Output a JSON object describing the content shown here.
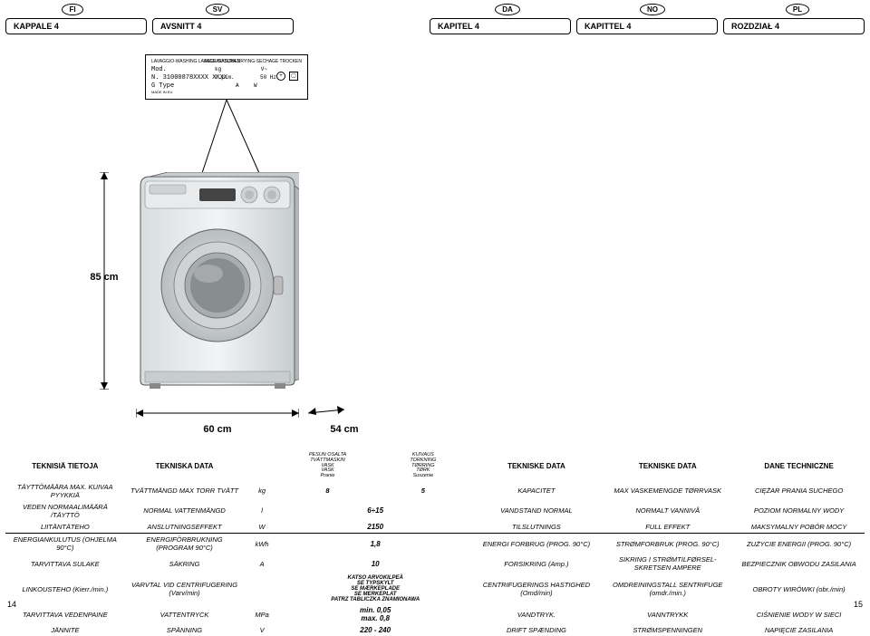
{
  "langs": [
    "FI",
    "SV",
    "",
    "DA",
    "NO",
    "PL"
  ],
  "chapters": [
    "KAPPALE 4",
    "AVSNITT 4",
    "",
    "KAPITEL 4",
    "KAPITTEL 4",
    "ROZDZIAŁ 4"
  ],
  "plate": {
    "topleft": "LAVAGGIO-WASHING\nLAVAGE-WASCHEN",
    "topright": "ASCIUGATURA\nDRYING-SECHAGE\nTROCKEN",
    "mod": "Mod.",
    "n": "N. 31000878XXXX XXXX",
    "g": "G       Type",
    "kg": "kg",
    "fs": "r.p.m.",
    "v": "V~",
    "hz": "50 Hz",
    "a": "A",
    "w": "W",
    "bot": "MADE IN EU"
  },
  "dims": {
    "h": "85 cm",
    "w": "60 cm",
    "d": "54 cm"
  },
  "header": {
    "c1": "TEKNISIÄ TIETOJA",
    "c2": "TEKNISKA DATA",
    "cu": "",
    "cv1_lines": [
      "PESUN OSALTA",
      "TVÄTTMASKIN",
      "VASK",
      "VASK",
      "Pranie"
    ],
    "cv2_lines": [
      "KUIVAUS",
      "TORKNING",
      "TØRRING",
      "TØRK",
      "Suszenie"
    ],
    "c3": "TEKNISKE DATA",
    "c4": "TEKNISKE DATA",
    "c5": "DANE TECHNICZNE"
  },
  "rows": [
    {
      "c1": "TÄYTTÖMÄÄRA MAX. KUIVAA PYYKKIÄ",
      "c2": "TVÄTTMÄNGD MAX TORR TVÄTT",
      "u": "kg",
      "v": "8            5",
      "c3": "KAPACITET",
      "c4": "MAX VASKEMENGDE TØRRVASK",
      "c5": "CIĘŻAR PRANIA SUCHEGO"
    },
    {
      "c1": "VEDEN NORMAALIMÄÄRÄ /TÄYTTÖ",
      "c2": "NORMAL VATTENMÄNGD",
      "u": "l",
      "v": "6÷15",
      "c3": "VANDSTAND NORMAL",
      "c4": "NORMALT VANNIVÅ",
      "c5": "POZIOM NORMALNY WODY"
    },
    {
      "c1": "LIITÄNTÄTEHO",
      "c2": "ANSLUTNINGSEFFEKT",
      "u": "W",
      "v": "2150",
      "c3": "TILSLUTNINGS",
      "c4": "FULL EFFEKT",
      "c5": "MAKSYMALNY POBÓR MOCY"
    }
  ],
  "rows2": [
    {
      "c1": "ENERGIANKULUTUS (OHJELMA 90°C)",
      "c2": "ENERGIFÖRBRUKNING (PROGRAM 90°C)",
      "u": "kWh",
      "v": "1,8",
      "c3": "ENERGI FORBRUG (PROG. 90°C)",
      "c4": "STRØMFORBRUK (PROG. 90°C)",
      "c5": "ZUŻYCIE ENERGII (PROG. 90°C)"
    },
    {
      "c1": "TARVITTAVA SULAKE",
      "c2": "SÄKRING",
      "u": "A",
      "v": "10",
      "c3": "FORSIKRING (Amp.)",
      "c4": "SIKRING I STRØMTILFØRSEL-SKRETSEN AMPERE",
      "c5": "BEZPIECZNIK OBWODU ZASILANIA"
    },
    {
      "c1": "LINKOUSTEHO (Kierr./min.)",
      "c2": "VARVTAL VID CENTRIFUGERING (Varv/min)",
      "u": "",
      "v": "KATSO ARVOKILPEÄ\nSE TYPSKYLT\nSE MÆRKEPLADE\nSE MERKEPLAT\nPATRZ TABLICZKA ZNAMIONAWA",
      "c3": "CENTRIFUGERINGS HASTIGHED (Omd/min)",
      "c4": "OMDREININGSTALL SENTRIFUGE (omdr./min.)",
      "c5": "OBROTY WIRÓWKI (obr./min)"
    },
    {
      "c1": "TARVITTAVA VEDENPAINE",
      "c2": "VATTENTRYCK",
      "u": "MPa",
      "v": "min. 0,05\nmax. 0,8",
      "c3": "VANDTRYK.",
      "c4": "VANNTRYKK",
      "c5": "CIŚNIENIE WODY W SIECI"
    },
    {
      "c1": "JÄNNITE",
      "c2": "SPÄNNING",
      "u": "V",
      "v": "220 - 240",
      "c3": "DRIFT SPÆNDING",
      "c4": "STRØMSPENNINGEN",
      "c5": "NAPIĘCIE ZASILANIA"
    }
  ],
  "pages": {
    "l": "14",
    "r": "15"
  }
}
